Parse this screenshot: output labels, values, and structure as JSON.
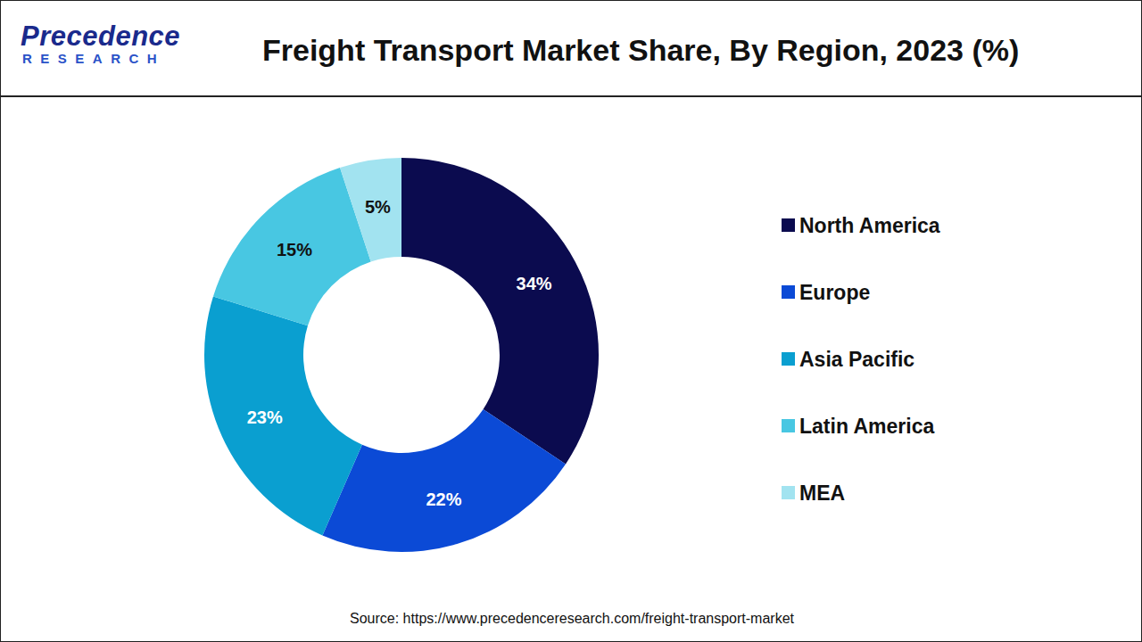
{
  "header": {
    "logo": {
      "name": "Precedence",
      "tagline": "RESEARCH"
    }
  },
  "chart_data": {
    "type": "pie",
    "title": "Freight Transport Market Share, By Region, 2023 (%)",
    "source": "Source: https://www.precedenceresearch.com/freight-transport-market",
    "categories": [
      "North America",
      "Europe",
      "Asia Pacific",
      "Latin America",
      "MEA"
    ],
    "values": [
      34,
      22,
      23,
      15,
      5
    ],
    "value_labels": [
      "34%",
      "22%",
      "23%",
      "15%",
      "5%"
    ],
    "colors": [
      "#0b0b4f",
      "#0b4ad6",
      "#0a9fd0",
      "#48c7e2",
      "#a2e3f0"
    ],
    "data_labels": true,
    "legend": "right"
  }
}
